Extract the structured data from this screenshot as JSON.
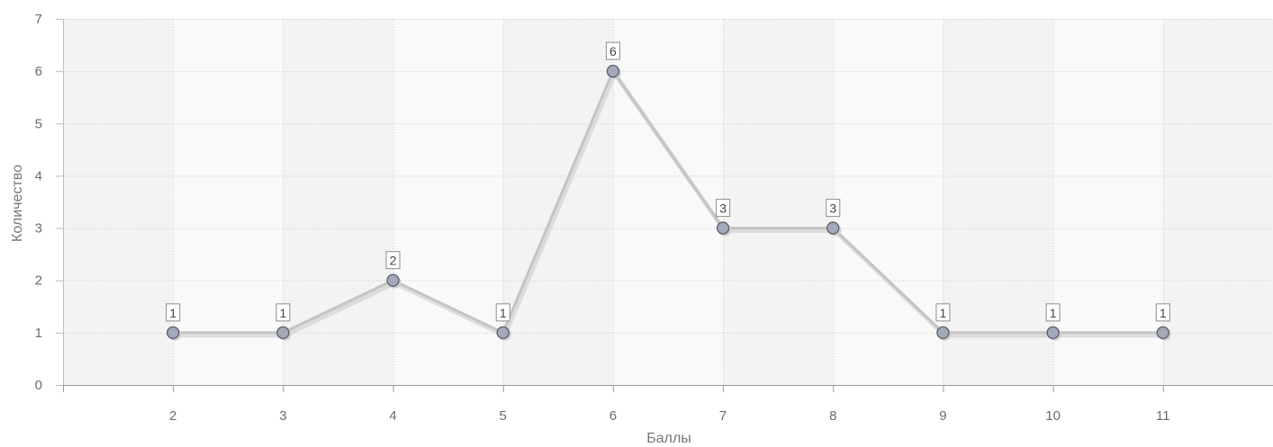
{
  "chart_data": {
    "type": "line",
    "x": [
      2,
      3,
      4,
      5,
      6,
      7,
      8,
      9,
      10,
      11
    ],
    "series": [
      {
        "values": [
          1,
          1,
          2,
          1,
          6,
          3,
          3,
          1,
          1,
          1
        ]
      }
    ],
    "data_labels": [
      "1",
      "1",
      "2",
      "1",
      "6",
      "3",
      "3",
      "1",
      "1",
      "1"
    ],
    "xlabel": "Баллы",
    "ylabel": "Количество",
    "xlim": [
      1,
      12
    ],
    "ylim": [
      0,
      7
    ],
    "x_ticks": [
      "2",
      "3",
      "4",
      "5",
      "6",
      "7",
      "8",
      "9",
      "10",
      "11"
    ],
    "y_ticks": [
      "0",
      "1",
      "2",
      "3",
      "4",
      "5",
      "6",
      "7"
    ],
    "grid": true,
    "alternating_column_bands": true,
    "legend": "none"
  },
  "colors": {
    "line": "#c4c4c4",
    "line_shadow": "#d9d9d9",
    "marker_fill": "#a4a8b8",
    "marker_stroke": "#5a5f6e",
    "band_light": "#f9f9f9",
    "band_dark": "#f3f3f3",
    "grid": "#c8c8c8"
  }
}
